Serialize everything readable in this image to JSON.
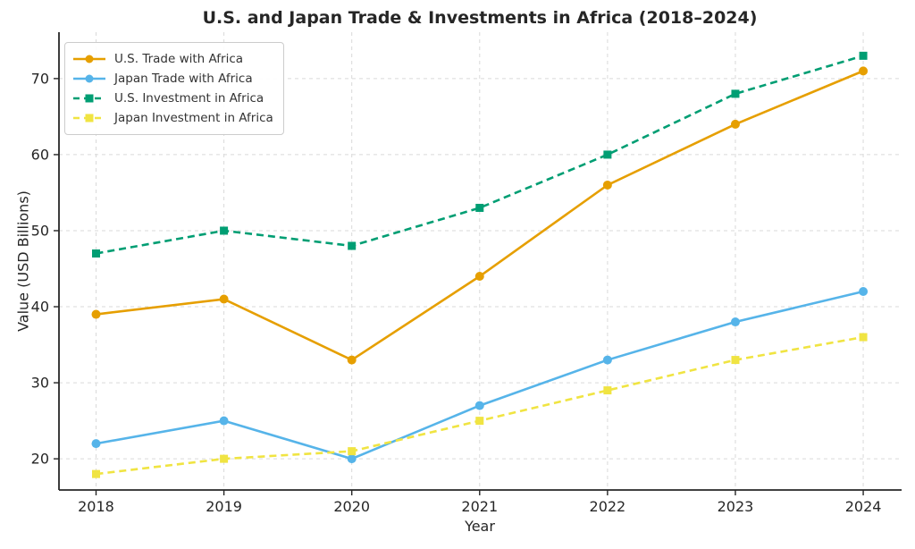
{
  "chart_data": {
    "type": "line",
    "title": "U.S. and Japan Trade & Investments in Africa (2018–2024)",
    "xlabel": "Year",
    "ylabel": "Value (USD Billions)",
    "x": [
      2018,
      2019,
      2020,
      2021,
      2022,
      2023,
      2024
    ],
    "x_tick_labels": [
      "2018",
      "2019",
      "2020",
      "2021",
      "2022",
      "2023",
      "2024"
    ],
    "y_ticks": [
      20,
      30,
      40,
      50,
      60,
      70
    ],
    "xlim": [
      2017.71,
      2024.3
    ],
    "ylim": [
      15.9,
      76.1
    ],
    "grid": true,
    "grid_style": "dashed",
    "legend_position": "upper-left",
    "series": [
      {
        "name": "U.S. Trade with Africa",
        "color": "#E69F00",
        "line_style": "solid",
        "marker": "circle",
        "values": [
          39,
          41,
          33,
          44,
          56,
          64,
          71
        ]
      },
      {
        "name": "Japan Trade with Africa",
        "color": "#56B4E9",
        "line_style": "solid",
        "marker": "circle",
        "values": [
          22,
          25,
          20,
          27,
          33,
          38,
          42
        ]
      },
      {
        "name": "U.S. Investment in Africa",
        "color": "#009E73",
        "line_style": "dashed",
        "marker": "square",
        "values": [
          47,
          50,
          48,
          53,
          60,
          68,
          73
        ]
      },
      {
        "name": "Japan Investment in Africa",
        "color": "#F0E442",
        "line_style": "dashed",
        "marker": "square",
        "values": [
          18,
          20,
          21,
          25,
          29,
          33,
          36
        ]
      }
    ],
    "colors": {
      "axis": "#262626",
      "grid": "#d9d9d9",
      "text": "#333333",
      "background": "#ffffff"
    }
  }
}
